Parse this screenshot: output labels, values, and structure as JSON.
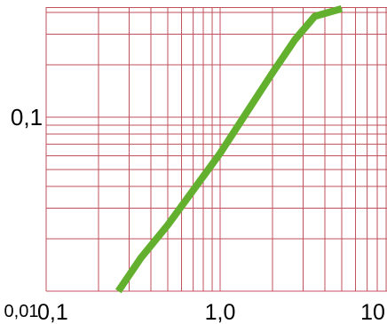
{
  "chart_data": {
    "type": "line",
    "title": "",
    "xlabel": "",
    "ylabel": "",
    "x_scale": "log",
    "y_scale": "log",
    "xlim": [
      0.1,
      10
    ],
    "ylim": [
      0.01,
      0.5
    ],
    "grid": true,
    "grid_color": "#c0505a",
    "line_color": "#62b02e",
    "x_tick_labels": [
      {
        "value": 0.1,
        "label": "0,1"
      },
      {
        "value": 1,
        "label": "1,0"
      },
      {
        "value": 10,
        "label": "10"
      }
    ],
    "y_tick_labels": [
      {
        "value": 0.01,
        "label": "0,01"
      },
      {
        "value": 0.1,
        "label": "0,1"
      }
    ],
    "series": [
      {
        "x": [
          0.26,
          0.35,
          0.5,
          0.7,
          1.0,
          1.4,
          2.0,
          2.7,
          3.5,
          5.0
        ],
        "y": [
          0.01,
          0.0155,
          0.024,
          0.038,
          0.062,
          0.104,
          0.18,
          0.28,
          0.38,
          0.42
        ]
      }
    ]
  }
}
